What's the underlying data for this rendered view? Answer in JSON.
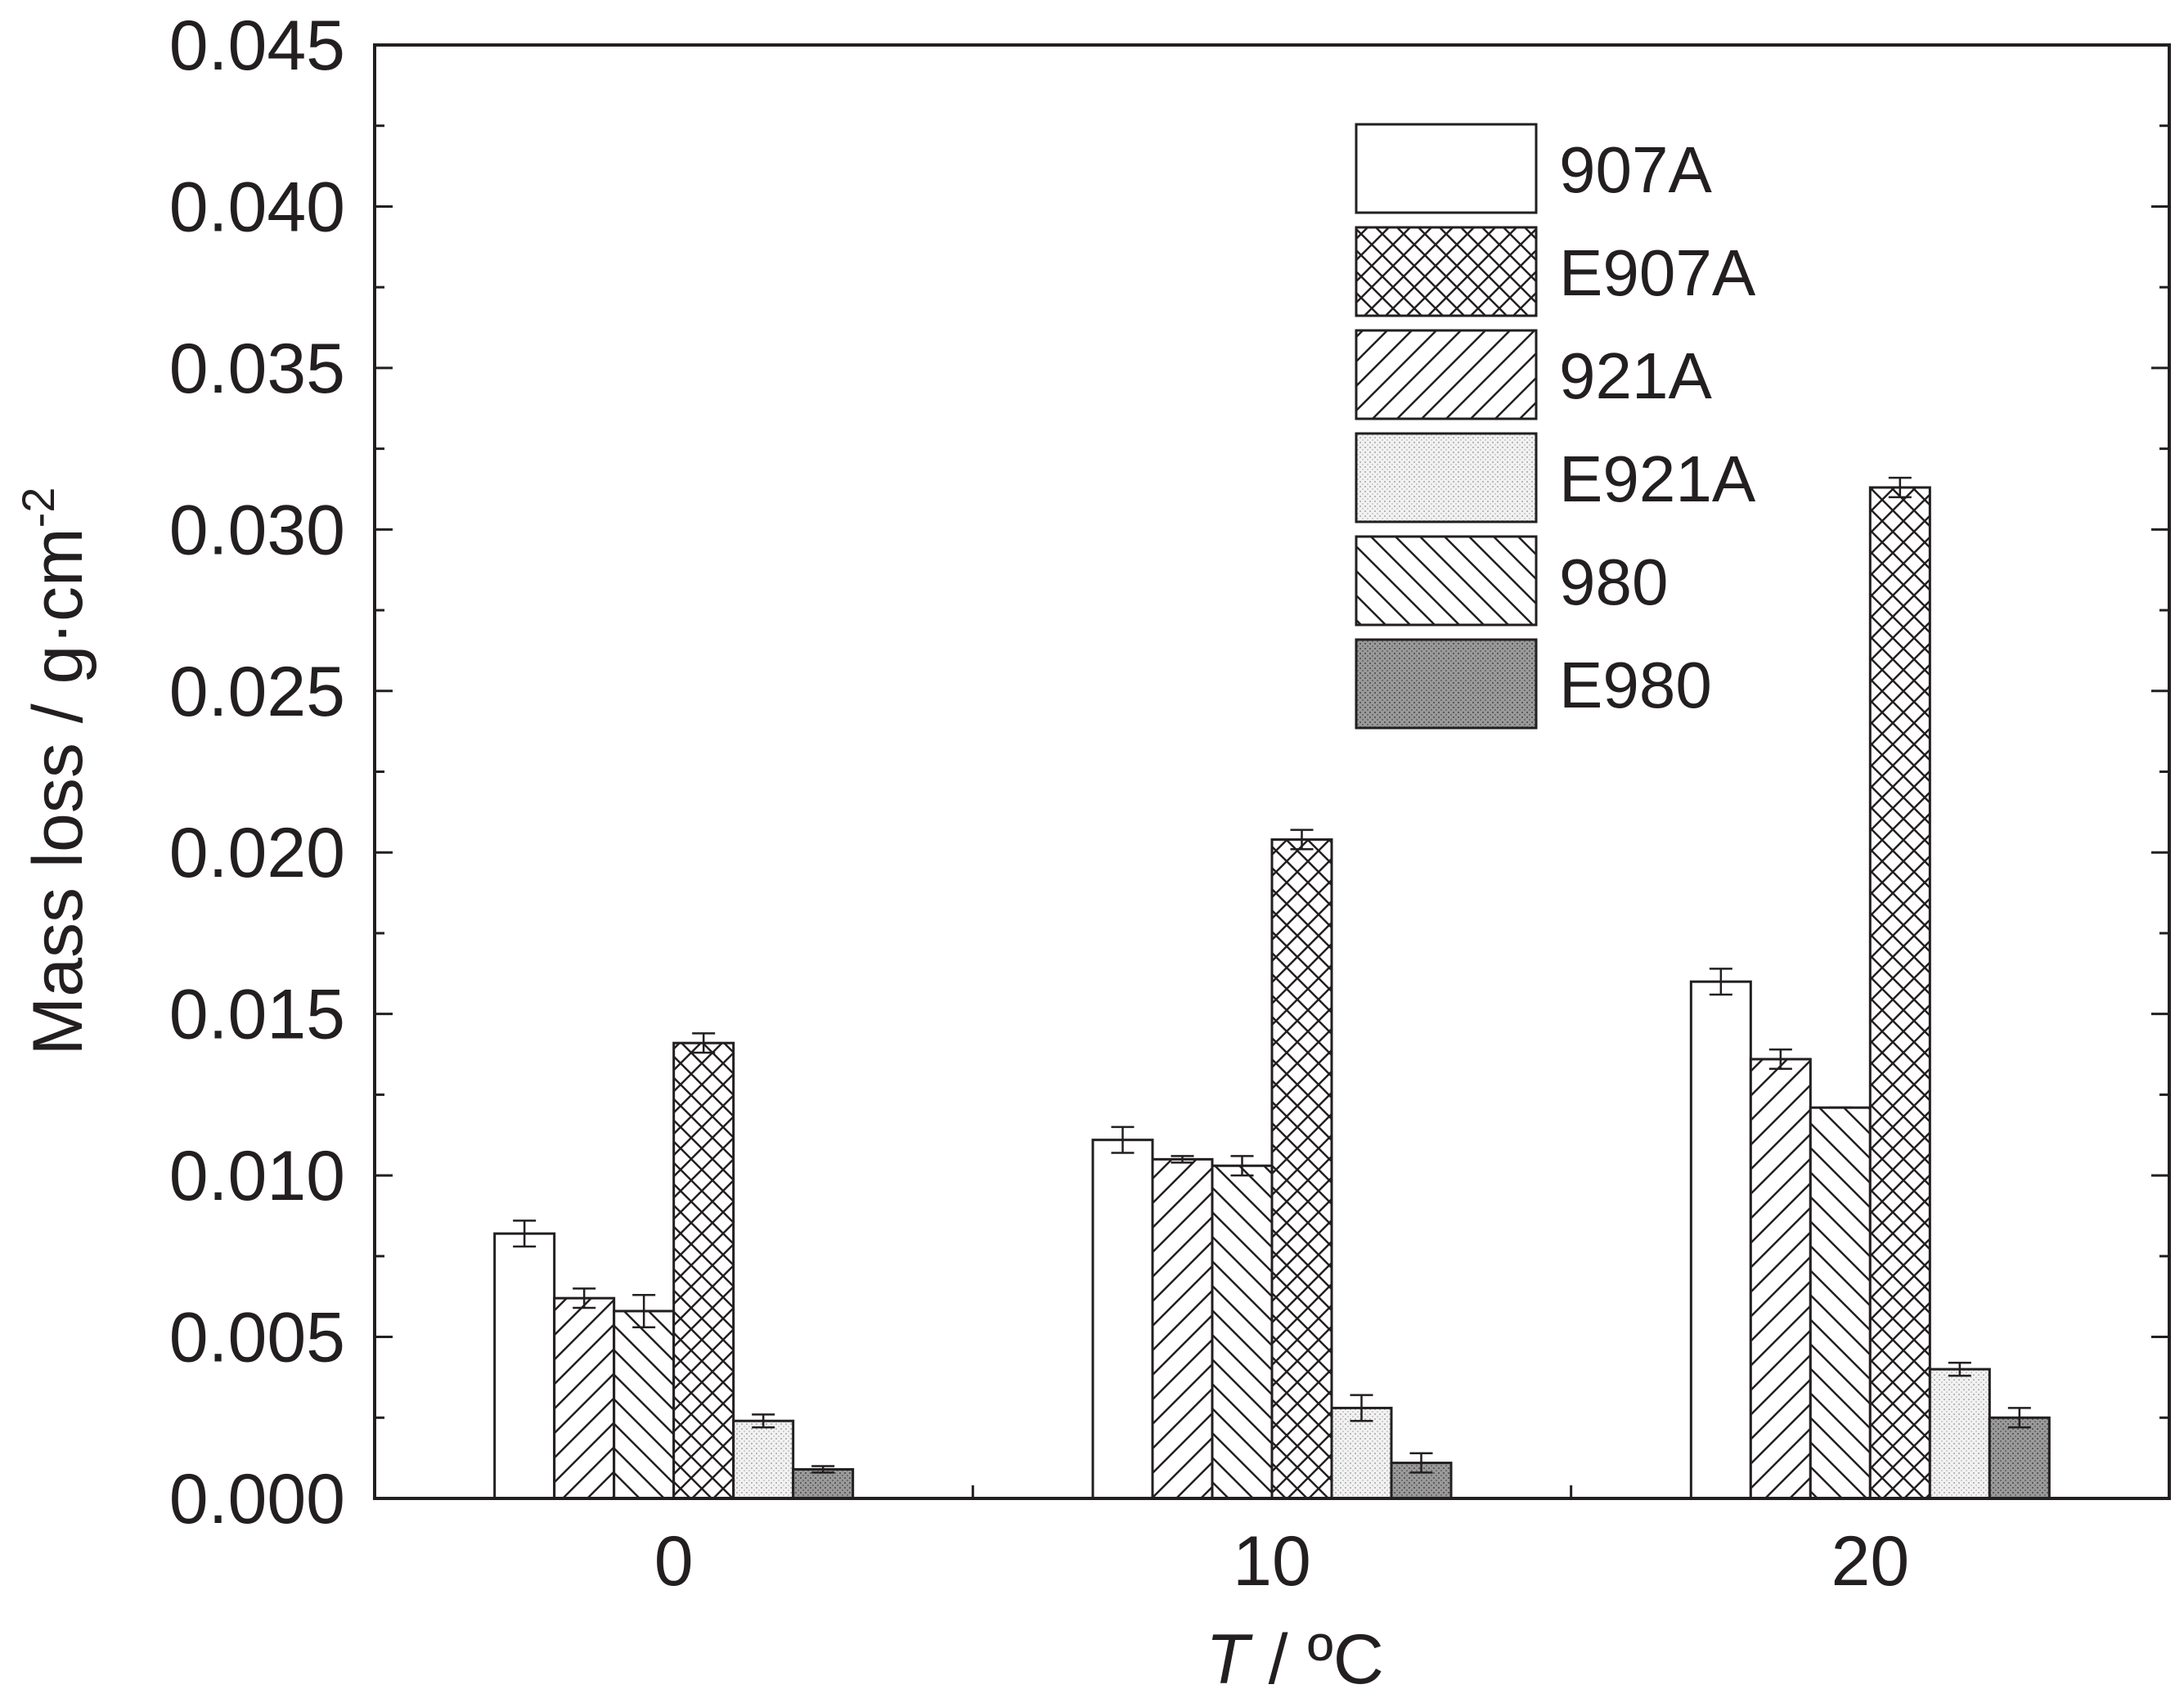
{
  "chart_data": {
    "type": "bar",
    "categories": [
      "0",
      "10",
      "20"
    ],
    "series_order_in_group": [
      "907A",
      "921A",
      "980",
      "E907A",
      "E921A",
      "E980"
    ],
    "series": [
      {
        "name": "907A",
        "pattern": "empty",
        "values": [
          0.0082,
          0.0111,
          0.016
        ],
        "errors": [
          0.0004,
          0.0004,
          0.0004
        ]
      },
      {
        "name": "E907A",
        "pattern": "crosshatch",
        "values": [
          0.0141,
          0.0204,
          0.0313
        ],
        "errors": [
          0.0003,
          0.0003,
          0.0003
        ]
      },
      {
        "name": "921A",
        "pattern": "forward-diagonal",
        "values": [
          0.0062,
          0.0105,
          0.0136
        ],
        "errors": [
          0.0003,
          0.0001,
          0.0003
        ]
      },
      {
        "name": "E921A",
        "pattern": "light-dots",
        "values": [
          0.0024,
          0.0028,
          0.004
        ],
        "errors": [
          0.0002,
          0.0004,
          0.0002
        ]
      },
      {
        "name": "980",
        "pattern": "back-diagonal",
        "values": [
          0.0058,
          0.0103,
          0.0121
        ],
        "errors": [
          0.0005,
          0.0003,
          0.0
        ]
      },
      {
        "name": "E980",
        "pattern": "dark-dots",
        "values": [
          0.0009,
          0.0011,
          0.0025
        ],
        "errors": [
          0.0001,
          0.0003,
          0.0003
        ]
      }
    ],
    "xlabel_italic": "T",
    "xlabel_rest": " / ºC",
    "ylabel": "Mass loss / g·cm",
    "ylabel_superscript": "-2",
    "ylim": [
      0,
      0.045
    ],
    "yticks": [
      "0.000",
      "0.005",
      "0.010",
      "0.015",
      "0.020",
      "0.025",
      "0.030",
      "0.035",
      "0.040",
      "0.045"
    ],
    "ytick_values": [
      0,
      0.005,
      0.01,
      0.015,
      0.02,
      0.025,
      0.03,
      0.035,
      0.04,
      0.045
    ],
    "grid": false,
    "legend_position": "top-right",
    "colors": {
      "axis": "#231f20",
      "light_dots": "#e6e6e6",
      "dark_dots": "#8c8c8c"
    }
  }
}
